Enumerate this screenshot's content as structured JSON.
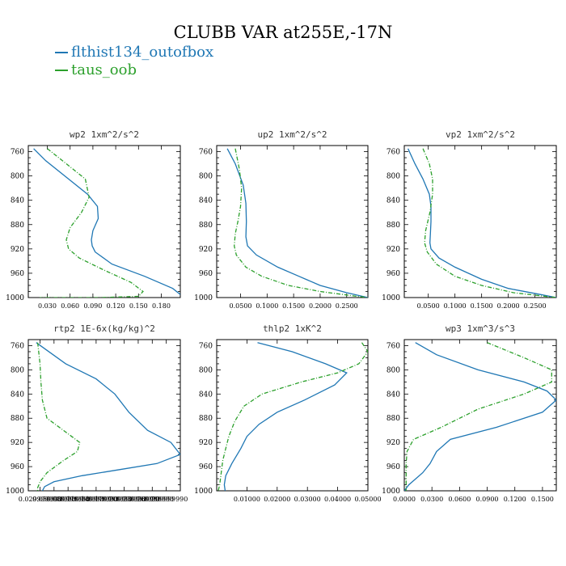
{
  "title": "CLUBB VAR at255E,-17N",
  "legend": [
    {
      "label": "flthist134_outofbox",
      "color": "#1f77b4"
    },
    {
      "label": "taus_oob",
      "color": "#2ca02c"
    }
  ],
  "chart_data": [
    {
      "type": "line",
      "title": "wp2  1xm^2/s^2",
      "xlim": [
        0.005,
        0.205
      ],
      "ylim": [
        1000,
        750
      ],
      "xticks": [
        0.03,
        0.06,
        0.09,
        0.12,
        0.15,
        0.18
      ],
      "xticklabels": [
        "0.030",
        "0.060",
        "0.090",
        "0.120",
        "0.150",
        "0.180"
      ],
      "yticks": [
        760,
        800,
        840,
        880,
        920,
        960,
        1000
      ],
      "series": [
        {
          "name": "flthist134_outofbox",
          "color": "#1f77b4",
          "dash": "",
          "x": [
            0.012,
            0.028,
            0.058,
            0.083,
            0.096,
            0.097,
            0.09,
            0.088,
            0.089,
            0.093,
            0.115,
            0.158,
            0.195,
            0.205
          ],
          "y": [
            755,
            775,
            805,
            830,
            850,
            870,
            890,
            905,
            915,
            925,
            945,
            965,
            985,
            995
          ]
        },
        {
          "name": "taus_oob",
          "color": "#2ca02c",
          "dash": "5 2 1 2",
          "x": [
            0.03,
            0.06,
            0.08,
            0.085,
            0.075,
            0.06,
            0.055,
            0.058,
            0.072,
            0.105,
            0.14,
            0.156,
            0.15,
            0.1,
            0.04,
            0.02
          ],
          "y": [
            755,
            785,
            805,
            835,
            860,
            885,
            905,
            920,
            935,
            955,
            975,
            990,
            998,
            1000,
            1000,
            1000
          ]
        }
      ]
    },
    {
      "type": "line",
      "title": "up2  1xm^2/s^2",
      "xlim": [
        0.005,
        0.29
      ],
      "ylim": [
        1000,
        750
      ],
      "xticks": [
        0.05,
        0.1,
        0.15,
        0.2,
        0.25
      ],
      "xticklabels": [
        "0.0500",
        "0.1000",
        "0.1500",
        "0.2000",
        "0.2500"
      ],
      "yticks": [
        760,
        800,
        840,
        880,
        920,
        960,
        1000
      ],
      "series": [
        {
          "name": "flthist134_outofbox",
          "color": "#1f77b4",
          "dash": "",
          "x": [
            0.025,
            0.04,
            0.055,
            0.06,
            0.061,
            0.06,
            0.063,
            0.08,
            0.12,
            0.16,
            0.2,
            0.25,
            0.29
          ],
          "y": [
            755,
            780,
            815,
            845,
            875,
            900,
            915,
            930,
            950,
            965,
            980,
            992,
            1000
          ]
        },
        {
          "name": "taus_oob",
          "color": "#2ca02c",
          "dash": "5 2 1 2",
          "x": [
            0.04,
            0.048,
            0.052,
            0.05,
            0.045,
            0.04,
            0.038,
            0.042,
            0.06,
            0.09,
            0.14,
            0.2,
            0.26,
            0.29
          ],
          "y": [
            755,
            790,
            820,
            850,
            875,
            895,
            915,
            930,
            950,
            965,
            980,
            990,
            997,
            1000
          ]
        }
      ]
    },
    {
      "type": "line",
      "title": "vp2  1xm^2/s^2",
      "xlim": [
        0.005,
        0.29
      ],
      "ylim": [
        1000,
        750
      ],
      "xticks": [
        0.05,
        0.1,
        0.15,
        0.2,
        0.25
      ],
      "xticklabels": [
        "0.0500",
        "0.1000",
        "0.1500",
        "0.2000",
        "0.2500"
      ],
      "yticks": [
        760,
        800,
        840,
        880,
        920,
        960,
        1000
      ],
      "series": [
        {
          "name": "flthist134_outofbox",
          "color": "#1f77b4",
          "dash": "",
          "x": [
            0.012,
            0.025,
            0.04,
            0.052,
            0.055,
            0.055,
            0.054,
            0.053,
            0.055,
            0.07,
            0.1,
            0.15,
            0.2,
            0.26,
            0.29
          ],
          "y": [
            755,
            780,
            805,
            830,
            850,
            875,
            895,
            910,
            920,
            935,
            950,
            970,
            985,
            995,
            1000
          ]
        },
        {
          "name": "taus_oob",
          "color": "#2ca02c",
          "dash": "5 2 1 2",
          "x": [
            0.04,
            0.052,
            0.058,
            0.058,
            0.053,
            0.045,
            0.043,
            0.048,
            0.065,
            0.1,
            0.15,
            0.21,
            0.27,
            0.29
          ],
          "y": [
            755,
            780,
            805,
            830,
            860,
            890,
            910,
            925,
            945,
            965,
            980,
            992,
            998,
            1000
          ]
        }
      ]
    },
    {
      "type": "line",
      "title": "rtp2  1E-6x(kg/kg)^2",
      "xlim": [
        0.005,
        0.33
      ],
      "ylim": [
        1000,
        750
      ],
      "xticks": [
        0.03,
        0.06,
        0.09,
        0.12,
        0.15,
        0.18,
        0.21,
        0.24,
        0.27,
        0.3
      ],
      "xticklabels": [
        "0.029999990",
        "0.059999990",
        "0.089999990",
        "0.119999990",
        "0.149999990",
        "0.179999990",
        "0.209999990",
        "0.239999990",
        "0.269999990",
        "0.299999990"
      ],
      "yticks": [
        760,
        800,
        840,
        880,
        920,
        960,
        1000
      ],
      "series": [
        {
          "name": "flthist134_outofbox",
          "color": "#1f77b4",
          "dash": "",
          "x": [
            0.022,
            0.04,
            0.085,
            0.15,
            0.19,
            0.22,
            0.26,
            0.31,
            0.33,
            0.28,
            0.2,
            0.12,
            0.06,
            0.04,
            0.035
          ],
          "y": [
            755,
            765,
            790,
            815,
            840,
            870,
            900,
            920,
            940,
            955,
            965,
            975,
            985,
            993,
            1000
          ]
        },
        {
          "name": "taus_oob",
          "color": "#2ca02c",
          "dash": "5 2 1 2",
          "x": [
            0.025,
            0.03,
            0.032,
            0.035,
            0.045,
            0.08,
            0.115,
            0.11,
            0.08,
            0.045,
            0.03,
            0.025,
            0.025
          ],
          "y": [
            755,
            790,
            820,
            850,
            880,
            900,
            920,
            935,
            950,
            970,
            985,
            995,
            1000
          ]
        }
      ]
    },
    {
      "type": "line",
      "title": "thlp2  1xK^2",
      "xlim": [
        0.0,
        0.05
      ],
      "ylim": [
        1000,
        750
      ],
      "xticks": [
        0.01,
        0.02,
        0.03,
        0.04,
        0.05
      ],
      "xticklabels": [
        "0.01000",
        "0.02000",
        "0.03000",
        "0.04000",
        "0.05000"
      ],
      "yticks": [
        760,
        800,
        840,
        880,
        920,
        960,
        1000
      ],
      "series": [
        {
          "name": "flthist134_outofbox",
          "color": "#1f77b4",
          "dash": "",
          "x": [
            0.0135,
            0.025,
            0.036,
            0.043,
            0.039,
            0.029,
            0.02,
            0.014,
            0.01,
            0.008,
            0.005,
            0.003,
            0.0025,
            0.0028
          ],
          "y": [
            755,
            770,
            790,
            805,
            825,
            850,
            870,
            890,
            910,
            930,
            955,
            975,
            990,
            1000
          ]
        },
        {
          "name": "taus_oob",
          "color": "#2ca02c",
          "dash": "5 2 1 2",
          "x": [
            0.048,
            0.05,
            0.047,
            0.04,
            0.028,
            0.015,
            0.009,
            0.006,
            0.004,
            0.003,
            0.002,
            0.0015,
            0.001,
            0.0005
          ],
          "y": [
            755,
            770,
            790,
            805,
            820,
            840,
            860,
            885,
            910,
            930,
            950,
            970,
            990,
            1000
          ]
        }
      ]
    },
    {
      "type": "line",
      "title": "wp3  1xm^3/s^3",
      "xlim": [
        0.0,
        0.165
      ],
      "ylim": [
        1000,
        750
      ],
      "xticks": [
        0.0,
        0.03,
        0.06,
        0.09,
        0.12,
        0.15
      ],
      "xticklabels": [
        "0.0000",
        "0.0300",
        "0.0600",
        "0.0900",
        "0.1200",
        "0.1500"
      ],
      "yticks": [
        760,
        800,
        840,
        880,
        920,
        960,
        1000
      ],
      "series": [
        {
          "name": "flthist134_outofbox",
          "color": "#1f77b4",
          "dash": "",
          "x": [
            0.012,
            0.035,
            0.08,
            0.13,
            0.155,
            0.165,
            0.15,
            0.1,
            0.05,
            0.035,
            0.028,
            0.02,
            0.005,
            0.0
          ],
          "y": [
            755,
            775,
            800,
            820,
            835,
            850,
            870,
            895,
            915,
            935,
            955,
            970,
            990,
            1000
          ]
        },
        {
          "name": "taus_oob",
          "color": "#2ca02c",
          "dash": "5 2 1 2",
          "x": [
            0.09,
            0.13,
            0.16,
            0.16,
            0.13,
            0.08,
            0.04,
            0.01,
            0.003,
            0.002,
            0.002,
            0.002
          ],
          "y": [
            755,
            780,
            800,
            820,
            840,
            865,
            895,
            915,
            935,
            955,
            980,
            1000
          ]
        }
      ]
    }
  ]
}
